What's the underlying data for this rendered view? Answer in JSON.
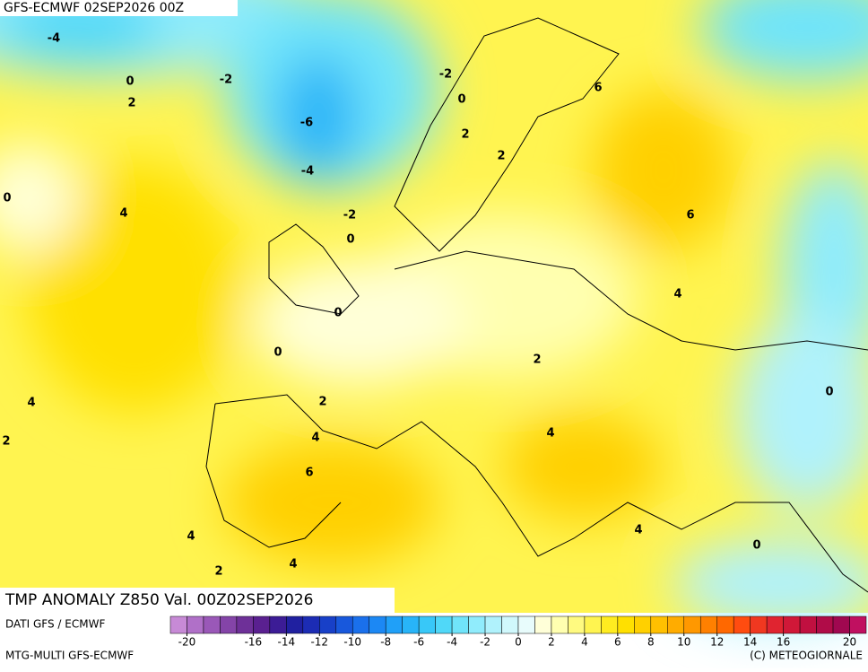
{
  "header": {
    "title": "GFS-ECMWF 02SEP2026 00Z"
  },
  "map": {
    "contour_labels": [
      -4,
      0,
      2,
      -2,
      -6,
      -4,
      -2,
      0,
      0,
      4,
      -2,
      0,
      2,
      2,
      6,
      6,
      4,
      0,
      0,
      2,
      4,
      2,
      2,
      4,
      6,
      4,
      4,
      0,
      0,
      4,
      2,
      4
    ]
  },
  "footer": {
    "title": "TMP ANOMALY Z850 Val. 00Z02SEP2026",
    "source": "DATI GFS / ECMWF",
    "model": "MTG-MULTI GFS-ECMWF",
    "credit": "(C) METEOGIORNALE"
  },
  "colorbar": {
    "range": [
      -21,
      21
    ],
    "ticks": [
      -20,
      -16,
      -14,
      -12,
      -10,
      -8,
      -6,
      -4,
      -2,
      0,
      2,
      4,
      6,
      8,
      10,
      12,
      14,
      16,
      20
    ],
    "colors": [
      "#c78ad6",
      "#b070c8",
      "#9a58b8",
      "#8444a8",
      "#6e3098",
      "#5a2090",
      "#3c1c96",
      "#2020a0",
      "#1c2cb4",
      "#1840c8",
      "#1858dc",
      "#1a70ec",
      "#1c88f4",
      "#20a0f8",
      "#28b4f8",
      "#38c8f8",
      "#50d8f8",
      "#70e4fa",
      "#90ecfc",
      "#b0f2fc",
      "#d0f8fc",
      "#e8fcfc",
      "#ffffd8",
      "#ffffb0",
      "#fffa80",
      "#fff450",
      "#ffec20",
      "#ffe000",
      "#ffd000",
      "#ffc000",
      "#ffac00",
      "#ff9800",
      "#ff8000",
      "#ff6800",
      "#ff4c10",
      "#f03820",
      "#e02430",
      "#d01838",
      "#c01040",
      "#b00c48",
      "#a00850",
      "#c01060"
    ]
  }
}
